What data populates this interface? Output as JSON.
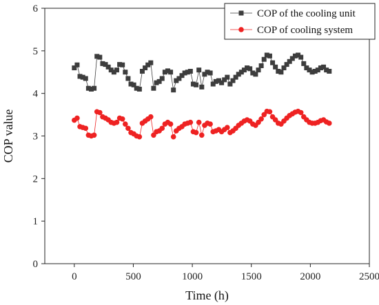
{
  "chart_data": {
    "type": "line",
    "xlabel": "Time (h)",
    "ylabel": "COP value",
    "xlim": [
      -250,
      2500
    ],
    "ylim": [
      0,
      6
    ],
    "xticks": [
      0,
      500,
      1000,
      1500,
      2000,
      2500
    ],
    "yticks": [
      0,
      1,
      2,
      3,
      4,
      5,
      6
    ],
    "grid": false,
    "legend_position": "top-right",
    "series": [
      {
        "name": "COP of the cooling unit",
        "color": "#3d3d3d",
        "marker": "square",
        "x": [
          0,
          24,
          48,
          72,
          96,
          120,
          144,
          168,
          192,
          216,
          240,
          264,
          288,
          312,
          336,
          360,
          384,
          408,
          432,
          456,
          480,
          504,
          528,
          552,
          576,
          600,
          624,
          648,
          672,
          696,
          720,
          744,
          768,
          792,
          816,
          840,
          864,
          888,
          912,
          936,
          960,
          984,
          1008,
          1032,
          1056,
          1080,
          1104,
          1128,
          1152,
          1176,
          1200,
          1224,
          1248,
          1272,
          1296,
          1320,
          1344,
          1368,
          1392,
          1416,
          1440,
          1464,
          1488,
          1512,
          1536,
          1560,
          1584,
          1608,
          1632,
          1656,
          1680,
          1704,
          1728,
          1752,
          1776,
          1800,
          1824,
          1848,
          1872,
          1896,
          1920,
          1944,
          1968,
          1992,
          2016,
          2040,
          2064,
          2088,
          2112,
          2136,
          2160
        ],
        "y": [
          4.6,
          4.67,
          4.4,
          4.38,
          4.35,
          4.12,
          4.1,
          4.12,
          4.87,
          4.85,
          4.7,
          4.68,
          4.62,
          4.55,
          4.5,
          4.55,
          4.68,
          4.67,
          4.5,
          4.35,
          4.22,
          4.2,
          4.12,
          4.1,
          4.52,
          4.6,
          4.67,
          4.72,
          4.12,
          4.25,
          4.28,
          4.35,
          4.5,
          4.53,
          4.5,
          4.08,
          4.3,
          4.35,
          4.42,
          4.48,
          4.5,
          4.52,
          4.22,
          4.2,
          4.55,
          4.15,
          4.45,
          4.5,
          4.48,
          4.22,
          4.28,
          4.3,
          4.25,
          4.32,
          4.38,
          4.22,
          4.3,
          4.38,
          4.45,
          4.5,
          4.55,
          4.6,
          4.58,
          4.48,
          4.45,
          4.55,
          4.65,
          4.8,
          4.9,
          4.88,
          4.72,
          4.62,
          4.52,
          4.5,
          4.6,
          4.68,
          4.75,
          4.82,
          4.88,
          4.9,
          4.85,
          4.7,
          4.6,
          4.55,
          4.5,
          4.52,
          4.55,
          4.6,
          4.62,
          4.55,
          4.52
        ]
      },
      {
        "name": "COP of cooling system",
        "color": "#ee2222",
        "marker": "circle",
        "x": [
          0,
          24,
          48,
          72,
          96,
          120,
          144,
          168,
          192,
          216,
          240,
          264,
          288,
          312,
          336,
          360,
          384,
          408,
          432,
          456,
          480,
          504,
          528,
          552,
          576,
          600,
          624,
          648,
          672,
          696,
          720,
          744,
          768,
          792,
          816,
          840,
          864,
          888,
          912,
          936,
          960,
          984,
          1008,
          1032,
          1056,
          1080,
          1104,
          1128,
          1152,
          1176,
          1200,
          1224,
          1248,
          1272,
          1296,
          1320,
          1344,
          1368,
          1392,
          1416,
          1440,
          1464,
          1488,
          1512,
          1536,
          1560,
          1584,
          1608,
          1632,
          1656,
          1680,
          1704,
          1728,
          1752,
          1776,
          1800,
          1824,
          1848,
          1872,
          1896,
          1920,
          1944,
          1968,
          1992,
          2016,
          2040,
          2064,
          2088,
          2112,
          2136,
          2160
        ],
        "y": [
          3.37,
          3.42,
          3.22,
          3.2,
          3.18,
          3.02,
          3.0,
          3.02,
          3.57,
          3.55,
          3.45,
          3.42,
          3.38,
          3.32,
          3.3,
          3.32,
          3.42,
          3.4,
          3.28,
          3.18,
          3.08,
          3.05,
          3.0,
          2.98,
          3.3,
          3.35,
          3.4,
          3.45,
          3.02,
          3.1,
          3.12,
          3.18,
          3.28,
          3.32,
          3.28,
          2.98,
          3.12,
          3.18,
          3.22,
          3.28,
          3.3,
          3.32,
          3.1,
          3.08,
          3.32,
          3.02,
          3.25,
          3.3,
          3.28,
          3.1,
          3.12,
          3.15,
          3.1,
          3.15,
          3.2,
          3.08,
          3.12,
          3.18,
          3.25,
          3.3,
          3.35,
          3.38,
          3.35,
          3.28,
          3.25,
          3.32,
          3.4,
          3.5,
          3.58,
          3.57,
          3.45,
          3.38,
          3.3,
          3.28,
          3.35,
          3.42,
          3.48,
          3.52,
          3.56,
          3.58,
          3.55,
          3.45,
          3.38,
          3.32,
          3.3,
          3.3,
          3.32,
          3.36,
          3.38,
          3.33,
          3.3
        ]
      }
    ]
  }
}
